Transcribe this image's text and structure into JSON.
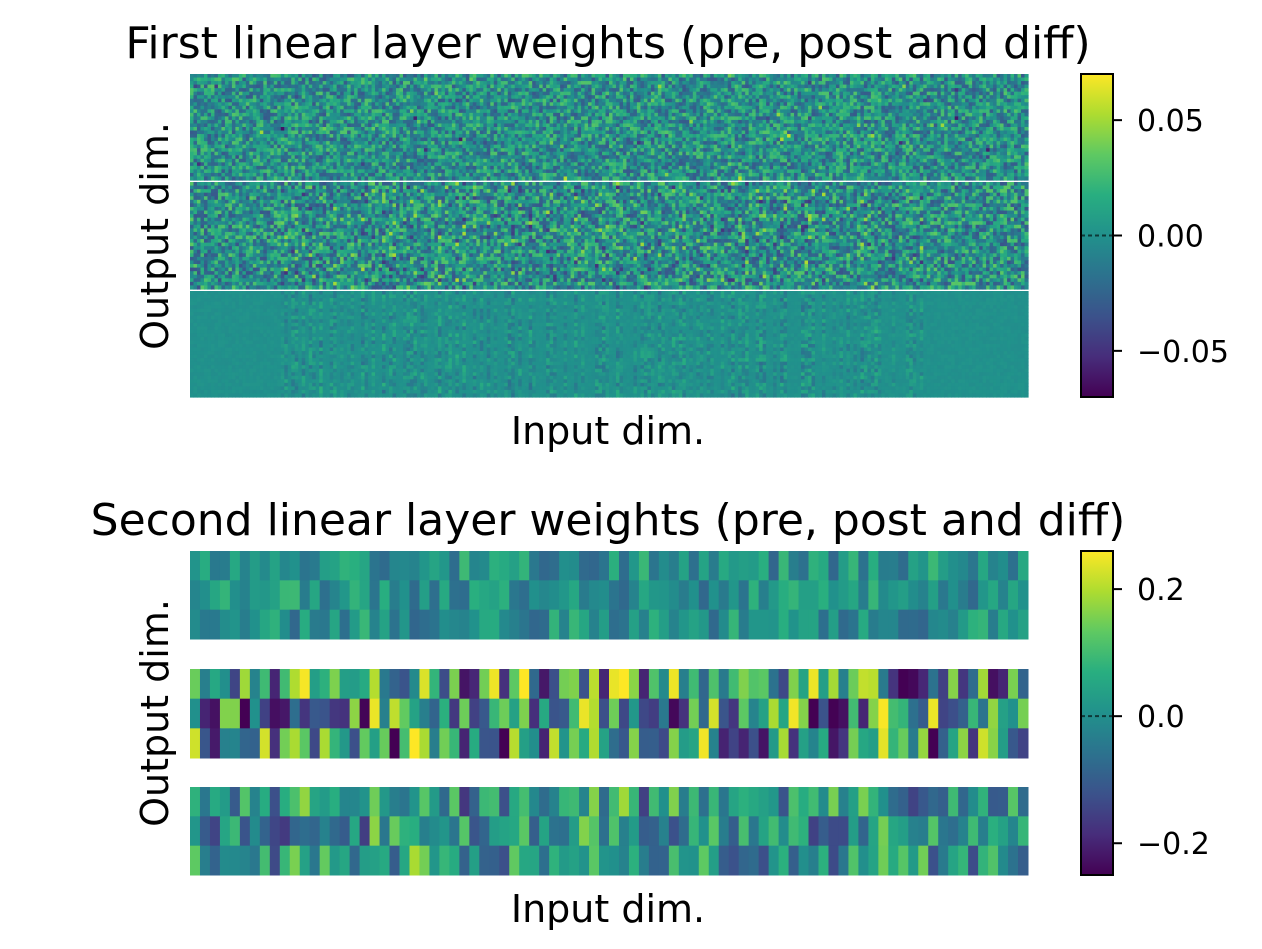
{
  "chart_data": [
    {
      "type": "heatmap",
      "title": "First linear layer weights (pre, post and diff)",
      "xlabel": "Input dim.",
      "ylabel": "Output dim.",
      "panels": [
        "pre",
        "post",
        "diff"
      ],
      "colormap": "viridis",
      "colorbar": {
        "vmin": -0.07,
        "vmax": 0.07,
        "ticks": [
          0.05,
          0.0,
          -0.05
        ],
        "tick_labels": [
          "0.05",
          "0.00",
          "−0.05"
        ]
      },
      "grid": false,
      "x_ticks_shown": false,
      "y_ticks_shown": false
    },
    {
      "type": "heatmap",
      "title": "Second linear layer weights (pre, post and diff)",
      "xlabel": "Input dim.",
      "ylabel": "Output dim.",
      "panels": [
        "pre",
        "post",
        "diff"
      ],
      "colormap": "viridis",
      "colorbar": {
        "vmin": -0.25,
        "vmax": 0.26,
        "ticks": [
          0.2,
          0.0,
          -0.2
        ],
        "tick_labels": [
          "0.2",
          "0.0",
          "−0.2"
        ]
      },
      "grid": false,
      "x_ticks_shown": false,
      "y_ticks_shown": false
    }
  ]
}
